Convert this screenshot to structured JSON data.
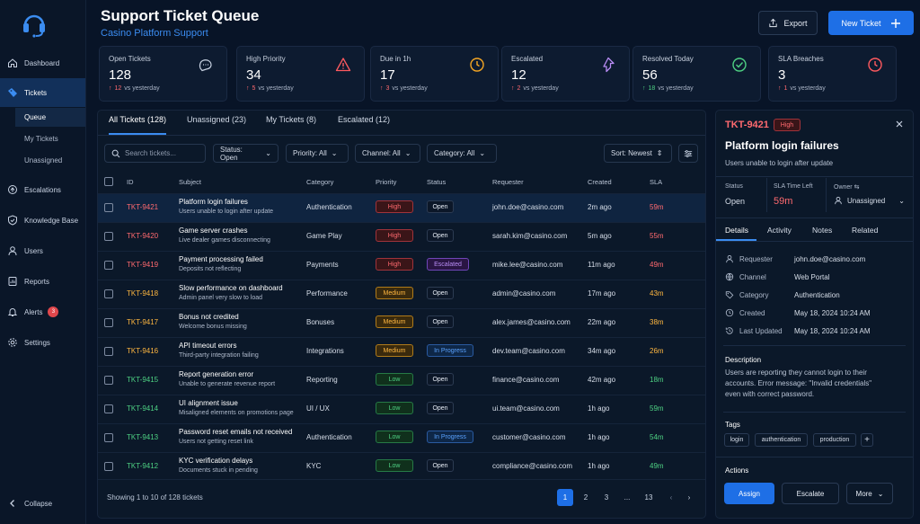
{
  "colors": {
    "accent": "#1e6fe6",
    "high": "#ff6a6f",
    "medium": "#ffb740",
    "low": "#4ed183",
    "bg": "#081427"
  },
  "sidebar": {
    "items": [
      {
        "label": "Dashboard",
        "icon": "home-icon"
      },
      {
        "label": "Tickets",
        "icon": "ticket-icon"
      },
      {
        "label": "Escalations",
        "icon": "escalation-icon"
      },
      {
        "label": "Knowledge Base",
        "icon": "shield-icon"
      },
      {
        "label": "Users",
        "icon": "users-icon"
      },
      {
        "label": "Reports",
        "icon": "reports-icon"
      },
      {
        "label": "Alerts",
        "icon": "bell-icon",
        "badge": "3"
      },
      {
        "label": "Settings",
        "icon": "gear-icon"
      }
    ],
    "subitems": [
      "Queue",
      "My Tickets",
      "Unassigned"
    ],
    "collapse": "Collapse"
  },
  "header": {
    "title": "Support Ticket Queue",
    "subtitle": "Casino Platform Support",
    "export": "Export",
    "new_ticket": "New Ticket"
  },
  "kpis": [
    {
      "label": "Open Tickets",
      "value": "128",
      "delta": "12",
      "delta_text": "vs yesterday",
      "dir": "up",
      "icon": "chat-icon"
    },
    {
      "label": "High Priority",
      "value": "34",
      "delta": "5",
      "delta_text": "vs yesterday",
      "dir": "up",
      "icon": "warning-icon"
    },
    {
      "label": "Due in 1h",
      "value": "17",
      "delta": "3",
      "delta_text": "vs yesterday",
      "dir": "up",
      "icon": "clock-icon"
    },
    {
      "label": "Escalated",
      "value": "12",
      "delta": "2",
      "delta_text": "vs yesterday",
      "dir": "up",
      "icon": "escalate-icon"
    },
    {
      "label": "Resolved Today",
      "value": "56",
      "delta": "18",
      "delta_text": "vs yesterday",
      "dir": "up-good",
      "icon": "check-circle-icon"
    },
    {
      "label": "SLA Breaches",
      "value": "3",
      "delta": "1",
      "delta_text": "vs yesterday",
      "dir": "up",
      "icon": "alarm-icon"
    }
  ],
  "tabs": [
    "All Tickets (128)",
    "Unassigned (23)",
    "My Tickets (8)",
    "Escalated (12)"
  ],
  "filters": {
    "search_placeholder": "Search tickets...",
    "status": "Status: Open",
    "priority": "Priority: All",
    "channel": "Channel: All",
    "category": "Category: All",
    "sort": "Sort: Newest"
  },
  "table": {
    "headers": [
      "ID",
      "Subject",
      "Category",
      "Priority",
      "Status",
      "Requester",
      "Created",
      "SLA"
    ],
    "rows": [
      {
        "id": "TKT-9421",
        "subject": "Platform login failures",
        "desc": "Users unable to login after update",
        "category": "Authentication",
        "priority": "High",
        "status": "Open",
        "requester": "john.doe@casino.com",
        "created": "2m ago",
        "sla": "59m"
      },
      {
        "id": "TKT-9420",
        "subject": "Game server crashes",
        "desc": "Live dealer games disconnecting",
        "category": "Game Play",
        "priority": "High",
        "status": "Open",
        "requester": "sarah.kim@casino.com",
        "created": "5m ago",
        "sla": "55m"
      },
      {
        "id": "TKT-9419",
        "subject": "Payment processing failed",
        "desc": "Deposits not reflecting",
        "category": "Payments",
        "priority": "High",
        "status": "Escalated",
        "requester": "mike.lee@casino.com",
        "created": "11m ago",
        "sla": "49m"
      },
      {
        "id": "TKT-9418",
        "subject": "Slow performance on dashboard",
        "desc": "Admin panel very slow to load",
        "category": "Performance",
        "priority": "Medium",
        "status": "Open",
        "requester": "admin@casino.com",
        "created": "17m ago",
        "sla": "43m"
      },
      {
        "id": "TKT-9417",
        "subject": "Bonus not credited",
        "desc": "Welcome bonus missing",
        "category": "Bonuses",
        "priority": "Medium",
        "status": "Open",
        "requester": "alex.james@casino.com",
        "created": "22m ago",
        "sla": "38m"
      },
      {
        "id": "TKT-9416",
        "subject": "API timeout errors",
        "desc": "Third-party integration failing",
        "category": "Integrations",
        "priority": "Medium",
        "status": "In Progress",
        "requester": "dev.team@casino.com",
        "created": "34m ago",
        "sla": "26m"
      },
      {
        "id": "TKT-9415",
        "subject": "Report generation error",
        "desc": "Unable to generate revenue report",
        "category": "Reporting",
        "priority": "Low",
        "status": "Open",
        "requester": "finance@casino.com",
        "created": "42m ago",
        "sla": "18m"
      },
      {
        "id": "TKT-9414",
        "subject": "UI alignment issue",
        "desc": "Misaligned elements on promotions page",
        "category": "UI / UX",
        "priority": "Low",
        "status": "Open",
        "requester": "ui.team@casino.com",
        "created": "1h ago",
        "sla": "59m"
      },
      {
        "id": "TKT-9413",
        "subject": "Password reset emails not received",
        "desc": "Users not getting reset link",
        "category": "Authentication",
        "priority": "Low",
        "status": "In Progress",
        "requester": "customer@casino.com",
        "created": "1h ago",
        "sla": "54m"
      },
      {
        "id": "TKT-9412",
        "subject": "KYC verification delays",
        "desc": "Documents stuck in pending",
        "category": "KYC",
        "priority": "Low",
        "status": "Open",
        "requester": "compliance@casino.com",
        "created": "1h ago",
        "sla": "49m"
      }
    ]
  },
  "pagination": {
    "summary": "Showing 1 to 10 of 128 tickets",
    "pages": [
      "1",
      "2",
      "3",
      "...",
      "13"
    ]
  },
  "detail": {
    "id": "TKT-9421",
    "priority": "High",
    "title": "Platform login failures",
    "subtitle": "Users unable to login after update",
    "status_label": "Status",
    "status": "Open",
    "sla_label": "SLA Time Left",
    "sla": "59m",
    "owner_label": "Owner",
    "owner": "Unassigned",
    "tabs": [
      "Details",
      "Activity",
      "Notes",
      "Related"
    ],
    "fields": [
      {
        "label": "Requester",
        "value": "john.doe@casino.com",
        "icon": "user-icon"
      },
      {
        "label": "Channel",
        "value": "Web Portal",
        "icon": "globe-icon"
      },
      {
        "label": "Category",
        "value": "Authentication",
        "icon": "tag-icon"
      },
      {
        "label": "Created",
        "value": "May 18, 2024 10:24 AM",
        "icon": "clock-icon"
      },
      {
        "label": "Last Updated",
        "value": "May 18, 2024 10:24 AM",
        "icon": "history-icon"
      }
    ],
    "description_label": "Description",
    "description": [
      "Users are reporting they cannot login to their",
      "accounts. Error message: \"Invalid credentials\"",
      "even with correct password."
    ],
    "tags_label": "Tags",
    "tags": [
      "login",
      "authentication",
      "production"
    ],
    "actions_label": "Actions",
    "assign": "Assign",
    "escalate": "Escalate",
    "more": "More"
  }
}
